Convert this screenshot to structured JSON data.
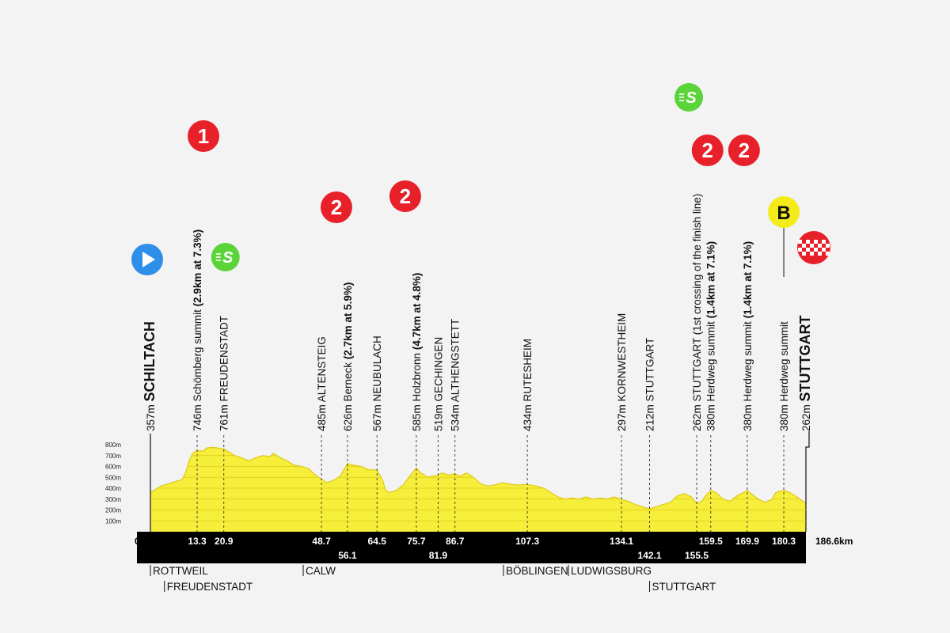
{
  "chart_data": {
    "type": "area",
    "xlim": [
      0,
      186.6
    ],
    "ylim": [
      0,
      800
    ],
    "y_ticks": [
      "100m",
      "200m",
      "300m",
      "400m",
      "500m",
      "600m",
      "700m",
      "800m"
    ],
    "origin_label": "0",
    "distance_end_label": "186.6km",
    "profile": [
      [
        0,
        357
      ],
      [
        1,
        380
      ],
      [
        3,
        420
      ],
      [
        5,
        440
      ],
      [
        7,
        460
      ],
      [
        9,
        480
      ],
      [
        10,
        540
      ],
      [
        11,
        650
      ],
      [
        12,
        720
      ],
      [
        13.3,
        746
      ],
      [
        15,
        740
      ],
      [
        16,
        770
      ],
      [
        18,
        775
      ],
      [
        20.9,
        761
      ],
      [
        22,
        740
      ],
      [
        24,
        700
      ],
      [
        26,
        680
      ],
      [
        28,
        650
      ],
      [
        30,
        680
      ],
      [
        32,
        700
      ],
      [
        34,
        690
      ],
      [
        35,
        720
      ],
      [
        37,
        680
      ],
      [
        39,
        650
      ],
      [
        41,
        610
      ],
      [
        43,
        600
      ],
      [
        45,
        580
      ],
      [
        47,
        520
      ],
      [
        48.7,
        485
      ],
      [
        50,
        450
      ],
      [
        52,
        470
      ],
      [
        54,
        510
      ],
      [
        56.1,
        626
      ],
      [
        58,
        610
      ],
      [
        60,
        600
      ],
      [
        62,
        570
      ],
      [
        64.5,
        567
      ],
      [
        66,
        480
      ],
      [
        67,
        380
      ],
      [
        68,
        360
      ],
      [
        70,
        380
      ],
      [
        72,
        430
      ],
      [
        74,
        520
      ],
      [
        75.7,
        585
      ],
      [
        77,
        540
      ],
      [
        79,
        500
      ],
      [
        80,
        510
      ],
      [
        81.9,
        519
      ],
      [
        83,
        540
      ],
      [
        85,
        520
      ],
      [
        86.7,
        534
      ],
      [
        88,
        510
      ],
      [
        90,
        540
      ],
      [
        92,
        500
      ],
      [
        94,
        440
      ],
      [
        96,
        420
      ],
      [
        98,
        430
      ],
      [
        100,
        450
      ],
      [
        102,
        440
      ],
      [
        104,
        430
      ],
      [
        107.3,
        434
      ],
      [
        110,
        420
      ],
      [
        112,
        400
      ],
      [
        114,
        360
      ],
      [
        116,
        320
      ],
      [
        118,
        300
      ],
      [
        120,
        310
      ],
      [
        122,
        300
      ],
      [
        124,
        320
      ],
      [
        126,
        300
      ],
      [
        128,
        310
      ],
      [
        130,
        300
      ],
      [
        132,
        320
      ],
      [
        134.1,
        297
      ],
      [
        136,
        280
      ],
      [
        138,
        250
      ],
      [
        140,
        230
      ],
      [
        142.1,
        212
      ],
      [
        144,
        230
      ],
      [
        146,
        250
      ],
      [
        148,
        270
      ],
      [
        150,
        330
      ],
      [
        152,
        350
      ],
      [
        154,
        320
      ],
      [
        155.5,
        262
      ],
      [
        157,
        280
      ],
      [
        158,
        330
      ],
      [
        159.5,
        380
      ],
      [
        161,
        360
      ],
      [
        163,
        300
      ],
      [
        165,
        280
      ],
      [
        167,
        330
      ],
      [
        169.9,
        380
      ],
      [
        171,
        350
      ],
      [
        173,
        300
      ],
      [
        175,
        270
      ],
      [
        177,
        300
      ],
      [
        178,
        360
      ],
      [
        180.3,
        380
      ],
      [
        182,
        360
      ],
      [
        184,
        320
      ],
      [
        186.6,
        262
      ]
    ],
    "points": [
      {
        "km": 0,
        "km_label": "",
        "alt": 357,
        "label_alt": "357m",
        "label_name": "SCHILTACH",
        "label_extra": "",
        "bold": true,
        "icon": "start"
      },
      {
        "km": 13.3,
        "km_label": "13.3",
        "alt": 746,
        "label_alt": "746m",
        "label_name": "Schömberg summit",
        "label_extra": "(2.9km at 7.3%)",
        "bold": false,
        "icon": "cat-1"
      },
      {
        "km": 20.9,
        "km_label": "20.9",
        "alt": 761,
        "label_alt": "761m",
        "label_name": "FREUDENSTADT",
        "label_extra": "",
        "bold": false,
        "icon": "sprint"
      },
      {
        "km": 48.7,
        "km_label": "48.7",
        "alt": 485,
        "label_alt": "485m",
        "label_name": "ALTENSTEIG",
        "label_extra": "",
        "bold": false,
        "icon": ""
      },
      {
        "km": 56.1,
        "km_label": "56.1",
        "alt": 626,
        "label_alt": "626m",
        "label_name": "Berneck",
        "label_extra": "(2.7km at 5.9%)",
        "bold": false,
        "icon": "cat-2"
      },
      {
        "km": 64.5,
        "km_label": "64.5",
        "alt": 567,
        "label_alt": "567m",
        "label_name": "NEUBULACH",
        "label_extra": "",
        "bold": false,
        "icon": ""
      },
      {
        "km": 75.7,
        "km_label": "75.7",
        "alt": 585,
        "label_alt": "585m",
        "label_name": "Holzbronn",
        "label_extra": "(4.7km at 4.8%)",
        "bold": false,
        "icon": "cat-2"
      },
      {
        "km": 81.9,
        "km_label": "81.9",
        "alt": 519,
        "label_alt": "519m",
        "label_name": "GECHINGEN",
        "label_extra": "",
        "bold": false,
        "icon": ""
      },
      {
        "km": 86.7,
        "km_label": "86.7",
        "alt": 534,
        "label_alt": "534m",
        "label_name": "ALTHENGSTETT",
        "label_extra": "",
        "bold": false,
        "icon": ""
      },
      {
        "km": 107.3,
        "km_label": "107.3",
        "alt": 434,
        "label_alt": "434m",
        "label_name": "RUTESHEIM",
        "label_extra": "",
        "bold": false,
        "icon": ""
      },
      {
        "km": 134.1,
        "km_label": "134.1",
        "alt": 297,
        "label_alt": "297m",
        "label_name": "KORNWESTHEIM",
        "label_extra": "",
        "bold": false,
        "icon": ""
      },
      {
        "km": 142.1,
        "km_label": "142.1",
        "alt": 212,
        "label_alt": "212m",
        "label_name": "STUTTGART",
        "label_extra": "",
        "bold": false,
        "icon": ""
      },
      {
        "km": 155.5,
        "km_label": "155.5",
        "alt": 262,
        "label_alt": "262m",
        "label_name": "STUTTGART (1st crossing of the finish line)",
        "label_extra": "",
        "bold": false,
        "icon": "sprint"
      },
      {
        "km": 159.5,
        "km_label": "159.5",
        "alt": 380,
        "label_alt": "380m",
        "label_name": "Herdweg summit",
        "label_extra": "(1.4km at 7.1%)",
        "bold": false,
        "icon": "cat-2"
      },
      {
        "km": 169.9,
        "km_label": "169.9",
        "alt": 380,
        "label_alt": "380m",
        "label_name": "Herdweg summit",
        "label_extra": "(1.4km at 7.1%)",
        "bold": false,
        "icon": "cat-2"
      },
      {
        "km": 180.3,
        "km_label": "180.3",
        "alt": 380,
        "label_alt": "380m",
        "label_name": "Herdweg summit",
        "label_extra": "",
        "bold": false,
        "icon": "bonus"
      },
      {
        "km": 186.6,
        "km_label": "",
        "alt": 262,
        "label_alt": "262m",
        "label_name": "STUTTGART",
        "label_extra": "",
        "bold": true,
        "icon": "finish"
      }
    ],
    "towns_below": [
      {
        "km": 0,
        "label": "ROTTWEIL",
        "row": 0
      },
      {
        "km": 4,
        "label": "FREUDENSTADT",
        "row": 1
      },
      {
        "km": 43.5,
        "label": "CALW",
        "row": 0
      },
      {
        "km": 100.5,
        "label": "BÖBLINGEN",
        "row": 0
      },
      {
        "km": 119,
        "label": "LUDWIGSBURG",
        "row": 0
      },
      {
        "km": 142.1,
        "label": "STUTTGART",
        "row": 1
      }
    ]
  },
  "icons": {
    "cat1_text": "1",
    "cat2_text": "2",
    "bonus_text": "B",
    "sprint_text": "S"
  },
  "colors": {
    "profile_fill": "#f5ee3a",
    "profile_line": "#e0c916",
    "climb_red": "#e8202a",
    "sprint_green": "#5bd43a",
    "bonus_yellow": "#f4ec1a",
    "start_blue": "#2e8fe8",
    "band": "#000000"
  }
}
